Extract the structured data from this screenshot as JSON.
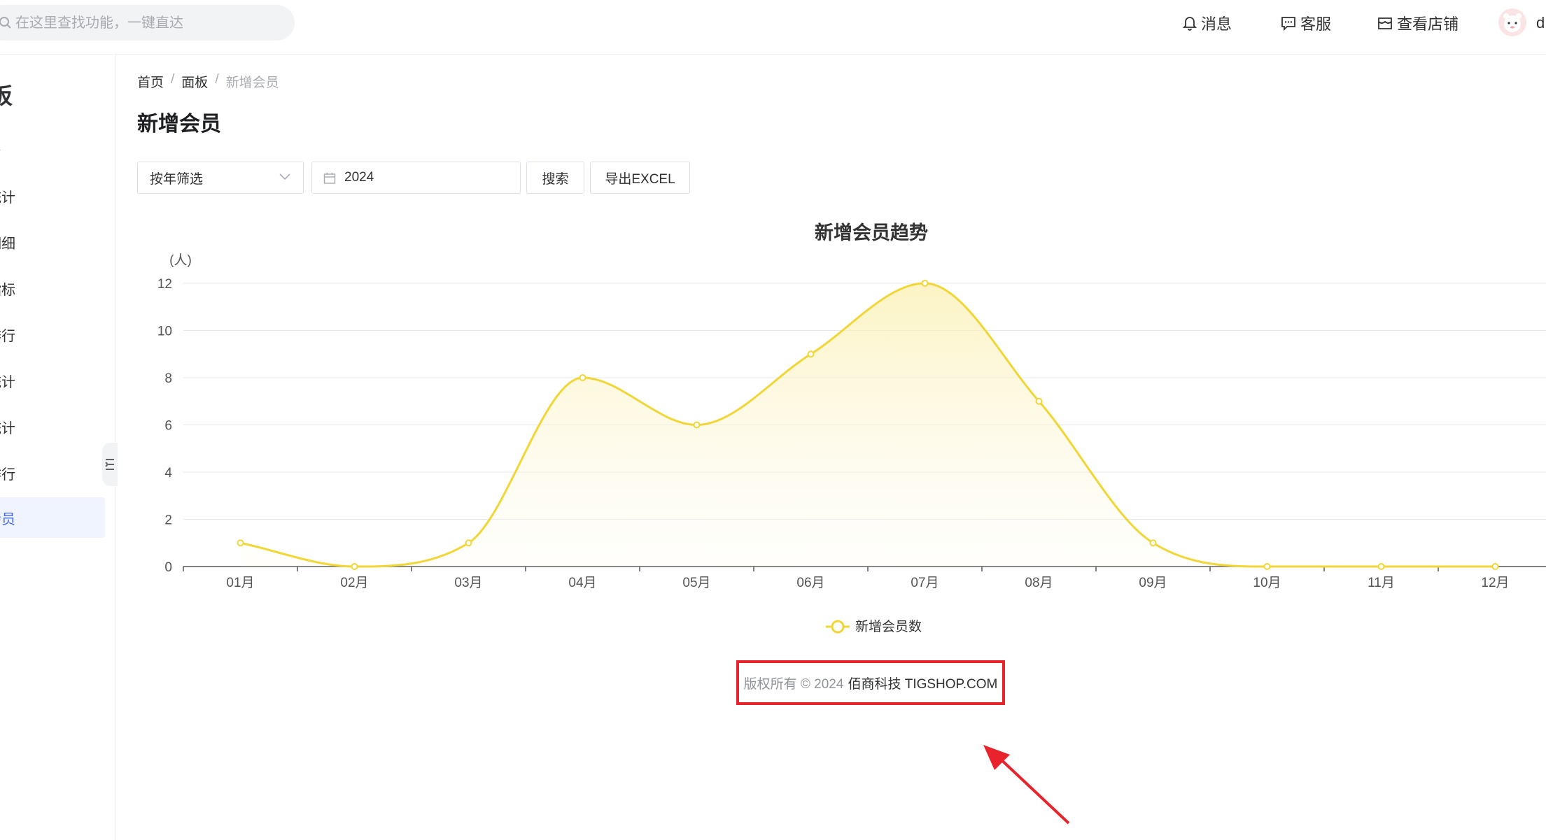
{
  "header": {
    "search_placeholder": "在这里查找功能，一键直达",
    "messages_label": "消息",
    "service_label": "客服",
    "view_store_label": "查看店铺",
    "username": "d"
  },
  "sidebar": {
    "title": "板",
    "items": [
      {
        "label": "台"
      },
      {
        "label": "统计"
      },
      {
        "label": "明细"
      },
      {
        "label": "指标"
      },
      {
        "label": "排行"
      },
      {
        "label": "统计"
      },
      {
        "label": "统计"
      },
      {
        "label": "排行"
      },
      {
        "label": "会员",
        "active": true
      }
    ]
  },
  "breadcrumb": [
    "首页",
    "面板",
    "新增会员"
  ],
  "page_title": "新增会员",
  "filters": {
    "mode_label": "按年筛选",
    "year_value": "2024",
    "search_button": "搜索",
    "export_button": "导出EXCEL"
  },
  "chart_data": {
    "type": "line",
    "smooth": true,
    "area": true,
    "title": "新增会员趋势",
    "ylabel": "(人)",
    "xlabel": "",
    "ylim": [
      0,
      12
    ],
    "yticks": [
      0,
      2,
      4,
      6,
      8,
      10,
      12
    ],
    "categories": [
      "01月",
      "02月",
      "03月",
      "04月",
      "05月",
      "06月",
      "07月",
      "08月",
      "09月",
      "10月",
      "11月",
      "12月"
    ],
    "series": [
      {
        "name": "新增会员数",
        "values": [
          1,
          0,
          1,
          8,
          6,
          9,
          12,
          7,
          1,
          0,
          0,
          0
        ],
        "color": "#f0d636"
      }
    ],
    "legend": "bottom-center"
  },
  "footer": {
    "copyright_prefix": "版权所有 © 2024",
    "company": "佰商科技 TIGSHOP.COM"
  },
  "colors": {
    "accent": "#4166f5",
    "line": "#f0d636",
    "highlight_box": "#e8232c"
  }
}
